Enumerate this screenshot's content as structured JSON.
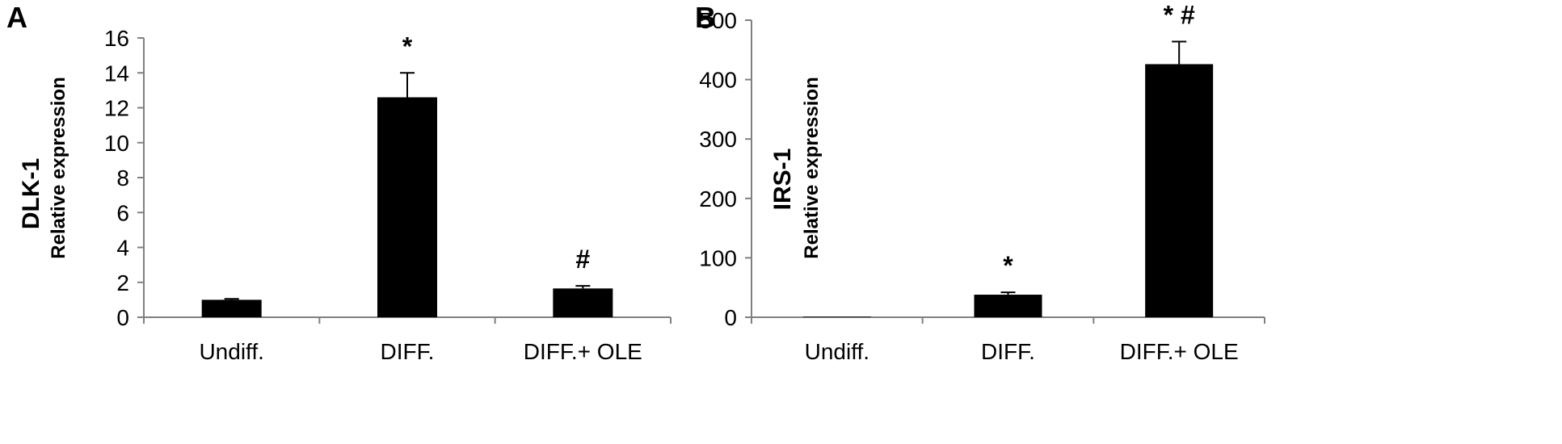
{
  "chart_data": [
    {
      "type": "bar",
      "panel_label": "A",
      "categories": [
        "Undiff.",
        "DIFF.",
        "DIFF.+ OLE"
      ],
      "values": [
        1.0,
        12.6,
        1.65
      ],
      "errors": [
        0.05,
        1.4,
        0.15
      ],
      "significance": [
        "",
        "*",
        "#"
      ],
      "ylabel": "DLK-1",
      "ylabel_sub": "Relative expression",
      "ylim": [
        0,
        16
      ],
      "yticks": [
        0,
        2,
        4,
        6,
        8,
        10,
        12,
        14,
        16
      ],
      "grid": false,
      "legend": "none",
      "bar_color": "#000000"
    },
    {
      "type": "bar",
      "panel_label": "B",
      "categories": [
        "Undiff.",
        "DIFF.",
        "DIFF.+ OLE"
      ],
      "values": [
        1,
        38,
        426
      ],
      "errors": [
        0,
        4,
        38
      ],
      "significance": [
        "",
        "*",
        "* #"
      ],
      "ylabel": "IRS-1",
      "ylabel_sub": "Relative expression",
      "ylim": [
        0,
        500
      ],
      "yticks": [
        0,
        100,
        200,
        300,
        400,
        500
      ],
      "grid": false,
      "legend": "none",
      "bar_color": "#000000"
    }
  ]
}
